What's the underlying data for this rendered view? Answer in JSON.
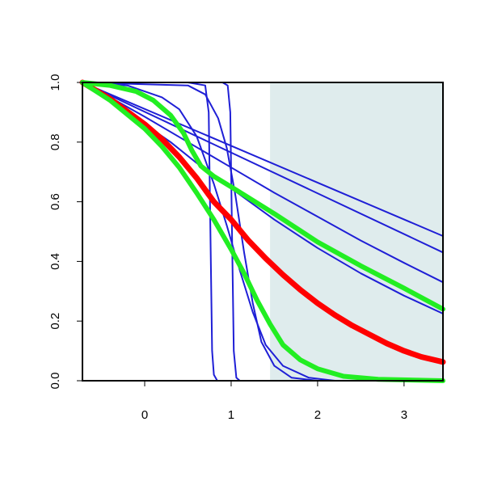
{
  "chart_data": {
    "type": "line",
    "title": "",
    "xlabel": "",
    "ylabel": "",
    "xlim": [
      -0.72,
      3.45
    ],
    "ylim": [
      0.0,
      1.0
    ],
    "x_ticks": [
      0,
      1,
      2,
      3
    ],
    "y_ticks": [
      0.0,
      0.2,
      0.4,
      0.6,
      0.8,
      1.0
    ],
    "x_tick_labels": [
      "0",
      "1",
      "2",
      "3"
    ],
    "y_tick_labels": [
      "0.0",
      "0.2",
      "0.4",
      "0.6",
      "0.8",
      "1.0"
    ],
    "grid": false,
    "legend": "none",
    "shaded_region": {
      "x_from": 1.45,
      "x_to": 3.45,
      "color": "#dfeced"
    },
    "series": [
      {
        "color": "#1f1fd6",
        "width": 2,
        "points": [
          [
            -0.72,
            1.0
          ],
          [
            0.5,
            1.0
          ],
          [
            0.7,
            0.99
          ],
          [
            0.74,
            0.9
          ],
          [
            0.76,
            0.5
          ],
          [
            0.78,
            0.1
          ],
          [
            0.8,
            0.02
          ],
          [
            0.84,
            0.0
          ],
          [
            3.45,
            0.0
          ]
        ]
      },
      {
        "color": "#1f1fd6",
        "width": 2,
        "points": [
          [
            -0.72,
            1.0
          ],
          [
            0.9,
            1.0
          ],
          [
            0.96,
            0.99
          ],
          [
            0.99,
            0.9
          ],
          [
            1.01,
            0.5
          ],
          [
            1.03,
            0.1
          ],
          [
            1.06,
            0.01
          ],
          [
            1.1,
            0.0
          ],
          [
            3.45,
            0.0
          ]
        ]
      },
      {
        "color": "#1f1fd6",
        "width": 2,
        "points": [
          [
            -0.72,
            1.0
          ],
          [
            0.5,
            0.99
          ],
          [
            0.7,
            0.96
          ],
          [
            0.85,
            0.88
          ],
          [
            0.95,
            0.78
          ],
          [
            1.05,
            0.62
          ],
          [
            1.15,
            0.43
          ],
          [
            1.25,
            0.26
          ],
          [
            1.35,
            0.13
          ],
          [
            1.5,
            0.05
          ],
          [
            1.7,
            0.01
          ],
          [
            2.0,
            0.0
          ],
          [
            3.45,
            0.0
          ]
        ]
      },
      {
        "color": "#1f1fd6",
        "width": 2,
        "points": [
          [
            -0.72,
            1.0
          ],
          [
            -0.2,
            0.99
          ],
          [
            0.2,
            0.95
          ],
          [
            0.4,
            0.91
          ],
          [
            0.6,
            0.82
          ],
          [
            0.8,
            0.66
          ],
          [
            0.95,
            0.52
          ],
          [
            1.1,
            0.37
          ],
          [
            1.25,
            0.23
          ],
          [
            1.4,
            0.12
          ],
          [
            1.6,
            0.05
          ],
          [
            1.9,
            0.01
          ],
          [
            2.2,
            0.0
          ],
          [
            3.45,
            0.0
          ]
        ]
      },
      {
        "color": "#1f1fd6",
        "width": 2,
        "points": [
          [
            -0.72,
            1.0
          ],
          [
            -0.4,
            0.94
          ],
          [
            0.0,
            0.86
          ],
          [
            0.3,
            0.8
          ],
          [
            0.6,
            0.73
          ],
          [
            1.0,
            0.645
          ],
          [
            1.5,
            0.54
          ],
          [
            2.0,
            0.445
          ],
          [
            2.5,
            0.36
          ],
          [
            3.0,
            0.285
          ],
          [
            3.45,
            0.225
          ]
        ]
      },
      {
        "color": "#1f1fd6",
        "width": 2,
        "points": [
          [
            -0.72,
            1.0
          ],
          [
            -0.4,
            0.95
          ],
          [
            0.0,
            0.885
          ],
          [
            0.5,
            0.8
          ],
          [
            1.0,
            0.715
          ],
          [
            1.5,
            0.63
          ],
          [
            2.0,
            0.55
          ],
          [
            2.5,
            0.47
          ],
          [
            3.0,
            0.395
          ],
          [
            3.45,
            0.33
          ]
        ]
      },
      {
        "color": "#1f1fd6",
        "width": 2,
        "points": [
          [
            -0.72,
            1.0
          ],
          [
            3.45,
            0.43
          ]
        ]
      },
      {
        "color": "#1f1fd6",
        "width": 2,
        "points": [
          [
            -0.72,
            1.0
          ],
          [
            3.45,
            0.485
          ]
        ]
      },
      {
        "color": "#ff0000",
        "width": 7,
        "points": [
          [
            -0.72,
            1.0
          ],
          [
            -0.4,
            0.945
          ],
          [
            0.0,
            0.86
          ],
          [
            0.2,
            0.81
          ],
          [
            0.4,
            0.75
          ],
          [
            0.6,
            0.68
          ],
          [
            0.8,
            0.6
          ],
          [
            1.0,
            0.54
          ],
          [
            1.2,
            0.47
          ],
          [
            1.4,
            0.41
          ],
          [
            1.6,
            0.355
          ],
          [
            1.8,
            0.305
          ],
          [
            2.0,
            0.26
          ],
          [
            2.2,
            0.22
          ],
          [
            2.4,
            0.185
          ],
          [
            2.6,
            0.155
          ],
          [
            2.8,
            0.125
          ],
          [
            3.0,
            0.1
          ],
          [
            3.2,
            0.08
          ],
          [
            3.45,
            0.063
          ]
        ]
      },
      {
        "color": "#22ee22",
        "width": 6,
        "points": [
          [
            -0.72,
            1.0
          ],
          [
            -0.4,
            0.94
          ],
          [
            0.0,
            0.845
          ],
          [
            0.2,
            0.785
          ],
          [
            0.4,
            0.715
          ],
          [
            0.6,
            0.63
          ],
          [
            0.8,
            0.54
          ],
          [
            1.0,
            0.44
          ],
          [
            1.15,
            0.36
          ],
          [
            1.3,
            0.27
          ],
          [
            1.45,
            0.19
          ],
          [
            1.6,
            0.12
          ],
          [
            1.8,
            0.07
          ],
          [
            2.0,
            0.04
          ],
          [
            2.3,
            0.015
          ],
          [
            2.7,
            0.005
          ],
          [
            3.45,
            0.0
          ]
        ]
      },
      {
        "color": "#22ee22",
        "width": 6,
        "points": [
          [
            -0.72,
            1.0
          ],
          [
            -0.4,
            0.99
          ],
          [
            -0.1,
            0.97
          ],
          [
            0.1,
            0.94
          ],
          [
            0.3,
            0.89
          ],
          [
            0.45,
            0.83
          ],
          [
            0.55,
            0.77
          ],
          [
            0.65,
            0.72
          ],
          [
            0.8,
            0.685
          ],
          [
            1.0,
            0.65
          ],
          [
            1.5,
            0.56
          ],
          [
            2.0,
            0.465
          ],
          [
            2.5,
            0.385
          ],
          [
            3.0,
            0.31
          ],
          [
            3.45,
            0.24
          ]
        ]
      }
    ]
  }
}
